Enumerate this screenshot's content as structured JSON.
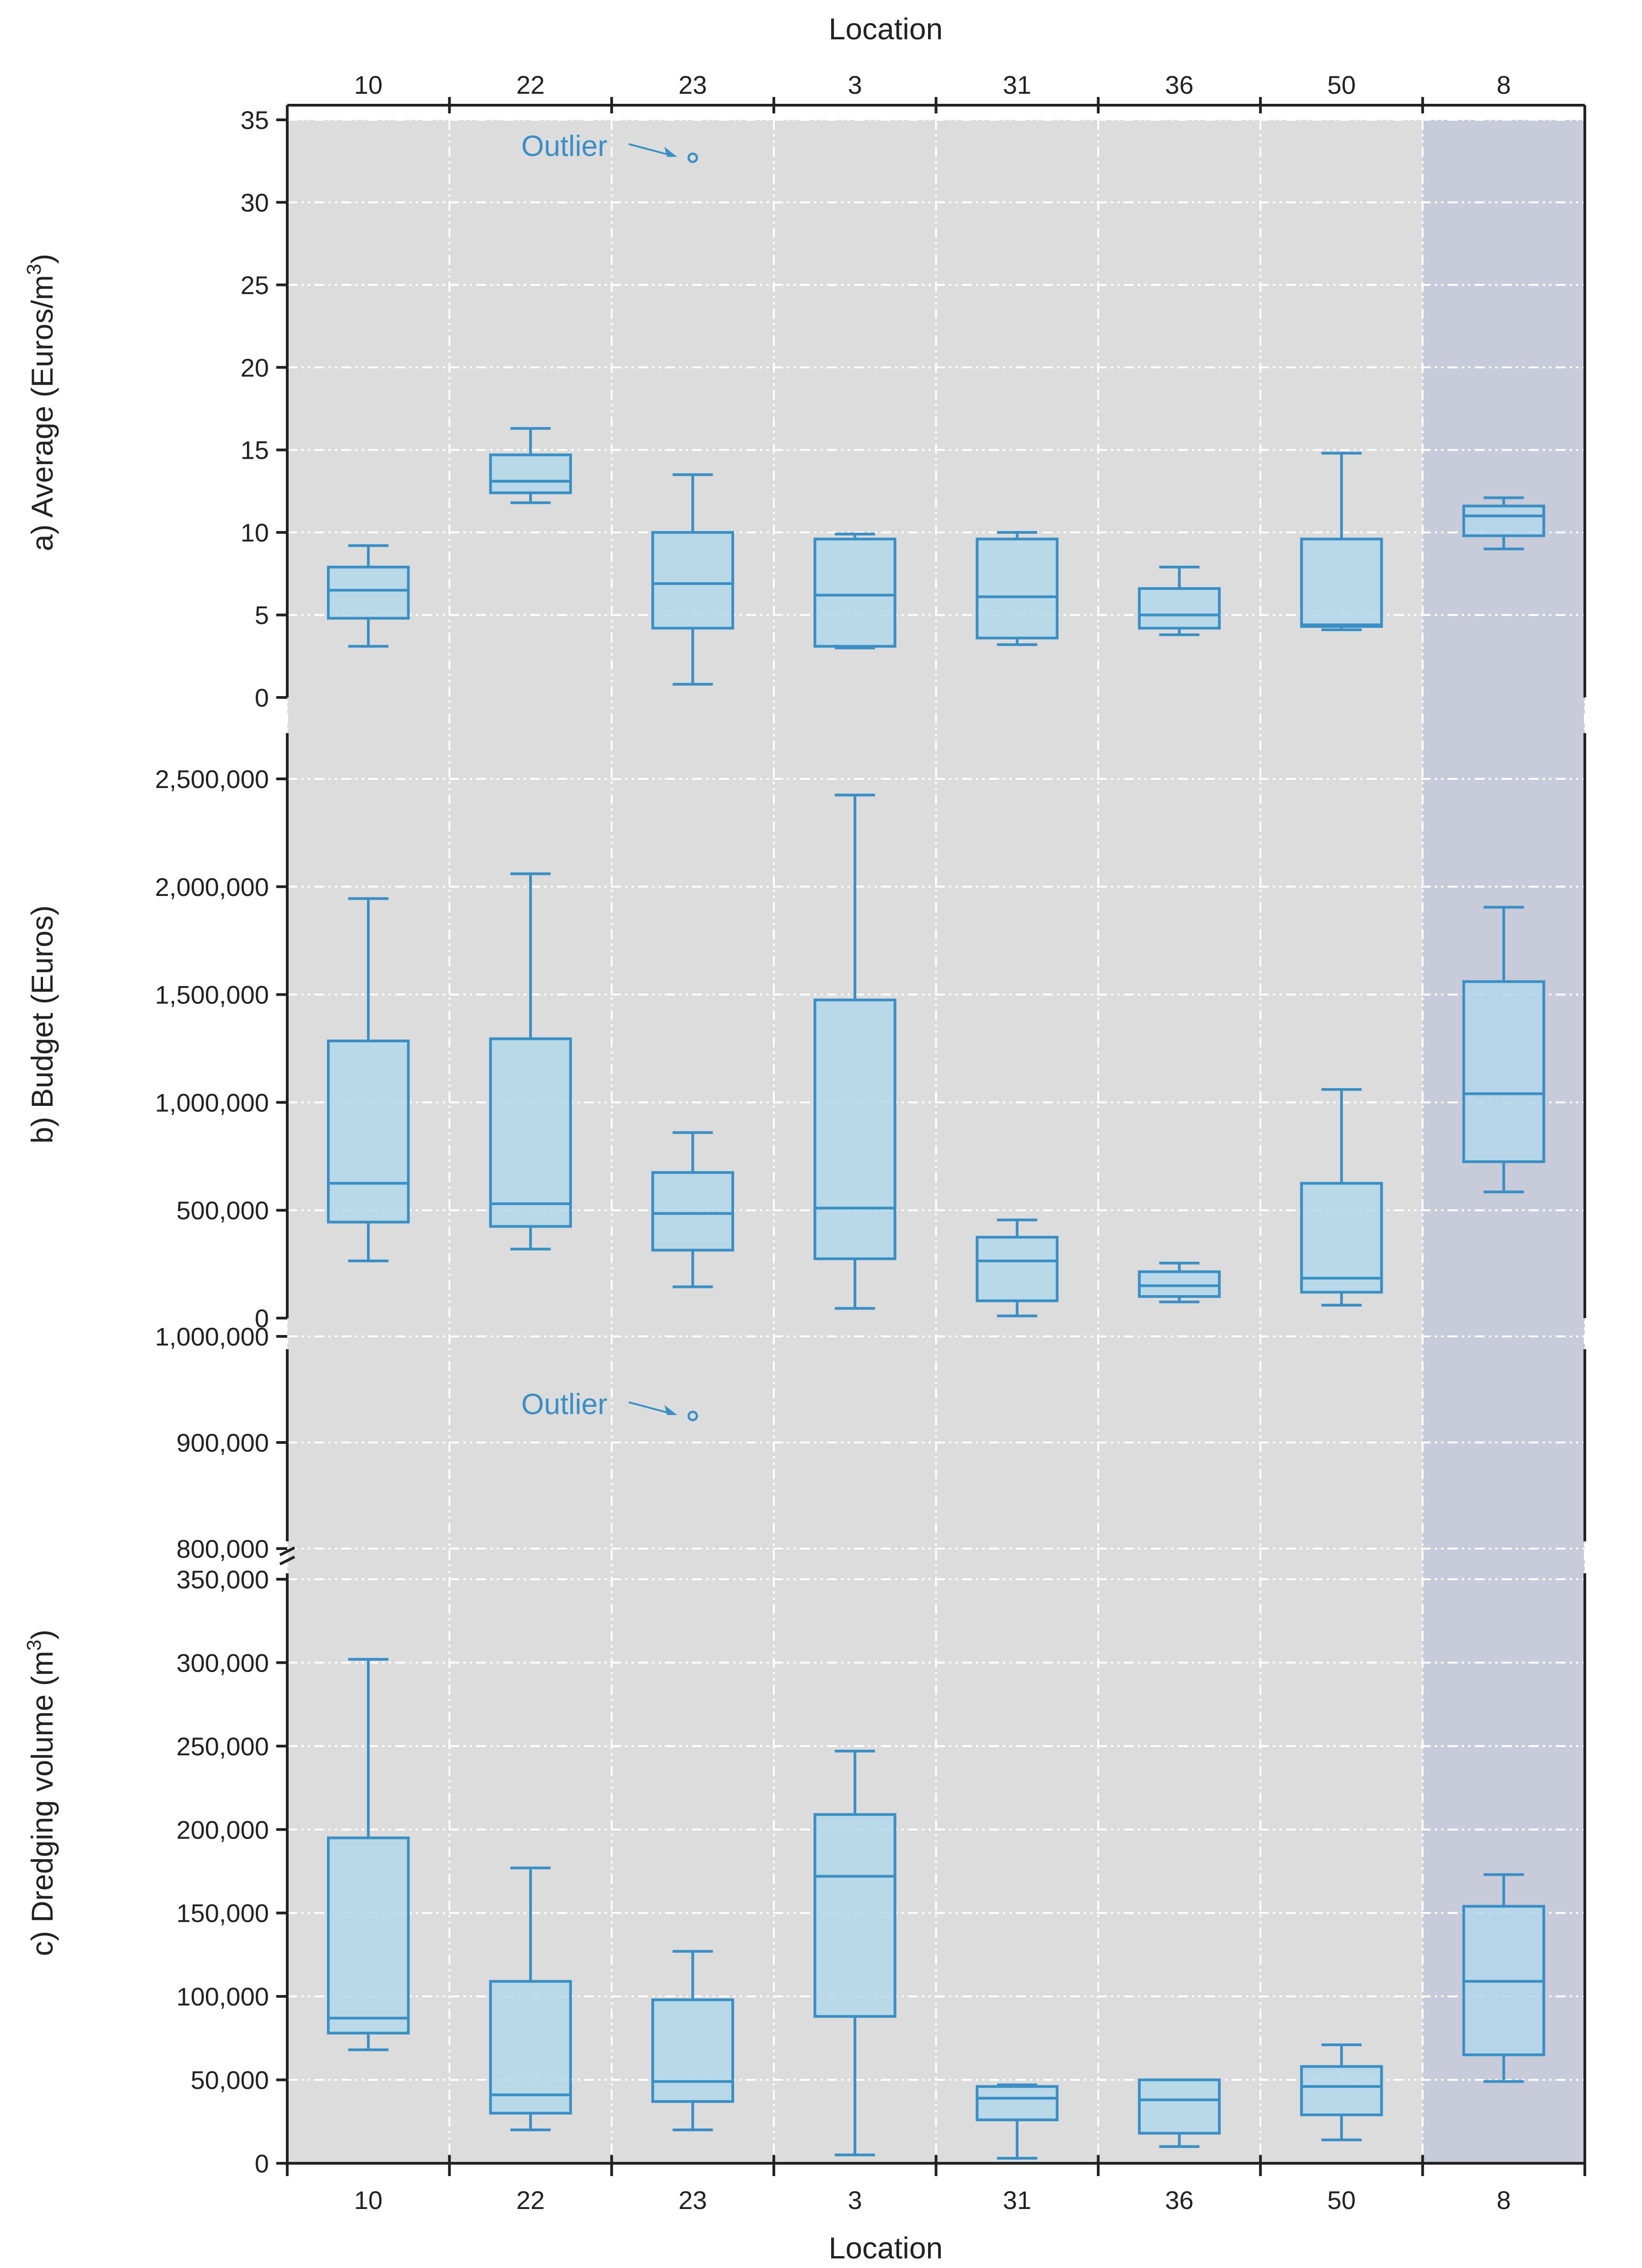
{
  "colors": {
    "panel_bg": "#dcdcdc",
    "highlight_band": "#c8cbd9",
    "box_fill": "#b3d7ea",
    "box_stroke": "#3a8fc5",
    "grid": "#ffffff",
    "axis": "#222222",
    "annotation": "#3a8fc5"
  },
  "chart_data": {
    "type": "boxplot",
    "categories": [
      "10",
      "22",
      "23",
      "3",
      "31",
      "36",
      "50",
      "8"
    ],
    "highlighted_category": "8",
    "top_axis_label": "Location",
    "bottom_axis_label": "Location",
    "panels": [
      {
        "id": "average",
        "ylabel": "a) Average (Euros/m",
        "ylabel_sup": "3",
        "ylabel_end": ")",
        "ylim": [
          0,
          35
        ],
        "yticks": [
          0,
          5,
          10,
          15,
          20,
          25,
          30,
          35
        ],
        "ytick_labels": [
          "0",
          "5",
          "10",
          "15",
          "20",
          "25",
          "30",
          "35"
        ],
        "boxes": [
          {
            "cat": "10",
            "whislo": 3.1,
            "q1": 4.8,
            "med": 6.5,
            "q3": 7.9,
            "whishi": 9.2
          },
          {
            "cat": "22",
            "whislo": 11.8,
            "q1": 12.4,
            "med": 13.1,
            "q3": 14.7,
            "whishi": 16.3
          },
          {
            "cat": "23",
            "whislo": 0.8,
            "q1": 4.2,
            "med": 6.9,
            "q3": 10.0,
            "whishi": 13.5
          },
          {
            "cat": "3",
            "whislo": 3.0,
            "q1": 3.1,
            "med": 6.2,
            "q3": 9.6,
            "whishi": 9.9
          },
          {
            "cat": "31",
            "whislo": 3.2,
            "q1": 3.6,
            "med": 6.1,
            "q3": 9.6,
            "whishi": 10.0
          },
          {
            "cat": "36",
            "whislo": 3.8,
            "q1": 4.2,
            "med": 5.0,
            "q3": 6.6,
            "whishi": 7.9
          },
          {
            "cat": "50",
            "whislo": 4.1,
            "q1": 4.3,
            "med": 4.4,
            "q3": 9.6,
            "whishi": 14.8
          },
          {
            "cat": "8",
            "whislo": 9.0,
            "q1": 9.8,
            "med": 11.0,
            "q3": 11.6,
            "whishi": 12.1
          }
        ],
        "outliers": [
          {
            "cat": "23",
            "value": 32.7
          }
        ],
        "annotation": {
          "text": "Outlier",
          "cat": "23",
          "value": 32.7
        }
      },
      {
        "id": "budget",
        "ylabel": "b) Budget (Euros)",
        "ylim": [
          0,
          2700000
        ],
        "yticks": [
          0,
          500000,
          1000000,
          1500000,
          2000000,
          2500000
        ],
        "ytick_labels": [
          "0",
          "500,000",
          "1,000,000",
          "1,500,000",
          "2,000,000",
          "2,500,000"
        ],
        "boxes": [
          {
            "cat": "10",
            "whislo": 265000,
            "q1": 445000,
            "med": 625000,
            "q3": 1285000,
            "whishi": 1945000
          },
          {
            "cat": "22",
            "whislo": 320000,
            "q1": 425000,
            "med": 530000,
            "q3": 1295000,
            "whishi": 2060000
          },
          {
            "cat": "23",
            "whislo": 145000,
            "q1": 315000,
            "med": 485000,
            "q3": 675000,
            "whishi": 860000
          },
          {
            "cat": "3",
            "whislo": 45000,
            "q1": 275000,
            "med": 510000,
            "q3": 1475000,
            "whishi": 2425000
          },
          {
            "cat": "31",
            "whislo": 10000,
            "q1": 80000,
            "med": 265000,
            "q3": 375000,
            "whishi": 455000
          },
          {
            "cat": "36",
            "whislo": 75000,
            "q1": 100000,
            "med": 150000,
            "q3": 215000,
            "whishi": 255000
          },
          {
            "cat": "50",
            "whislo": 60000,
            "q1": 120000,
            "med": 185000,
            "q3": 625000,
            "whishi": 1060000
          },
          {
            "cat": "8",
            "whislo": 585000,
            "q1": 725000,
            "med": 1040000,
            "q3": 1560000,
            "whishi": 1905000
          }
        ]
      },
      {
        "id": "volume_upper",
        "ylim": [
          790000,
          1025000
        ],
        "yticks": [
          800000,
          900000,
          1000000
        ],
        "ytick_labels": [
          "800,000",
          "900,000",
          "1,000,000"
        ],
        "outliers": [
          {
            "cat": "23",
            "value": 925000
          }
        ],
        "annotation": {
          "text": "Outlier",
          "cat": "23",
          "value": 925000
        }
      },
      {
        "id": "volume_lower",
        "ylabel": "c) Dredging volume (m",
        "ylabel_sup": "3",
        "ylabel_end": ")",
        "ylim": [
          0,
          350000
        ],
        "yticks": [
          0,
          50000,
          100000,
          150000,
          200000,
          250000,
          300000,
          350000
        ],
        "ytick_labels": [
          "0",
          "50,000",
          "100,000",
          "150,000",
          "200,000",
          "250,000",
          "300,000",
          "350,000"
        ],
        "boxes": [
          {
            "cat": "10",
            "whislo": 68000,
            "q1": 78000,
            "med": 87000,
            "q3": 195000,
            "whishi": 302000
          },
          {
            "cat": "22",
            "whislo": 20000,
            "q1": 30000,
            "med": 41000,
            "q3": 109000,
            "whishi": 177000
          },
          {
            "cat": "23",
            "whislo": 20000,
            "q1": 37000,
            "med": 49000,
            "q3": 98000,
            "whishi": 127000
          },
          {
            "cat": "3",
            "whislo": 5000,
            "q1": 88000,
            "med": 172000,
            "q3": 209000,
            "whishi": 247000
          },
          {
            "cat": "31",
            "whislo": 3000,
            "q1": 26000,
            "med": 39000,
            "q3": 46000,
            "whishi": 47000
          },
          {
            "cat": "36",
            "whislo": 10000,
            "q1": 18000,
            "med": 38000,
            "q3": 50000,
            "whishi": 50000
          },
          {
            "cat": "50",
            "whislo": 14000,
            "q1": 29000,
            "med": 46000,
            "q3": 58000,
            "whishi": 71000
          },
          {
            "cat": "8",
            "whislo": 49000,
            "q1": 65000,
            "med": 109000,
            "q3": 154000,
            "whishi": 173000
          }
        ]
      }
    ]
  }
}
